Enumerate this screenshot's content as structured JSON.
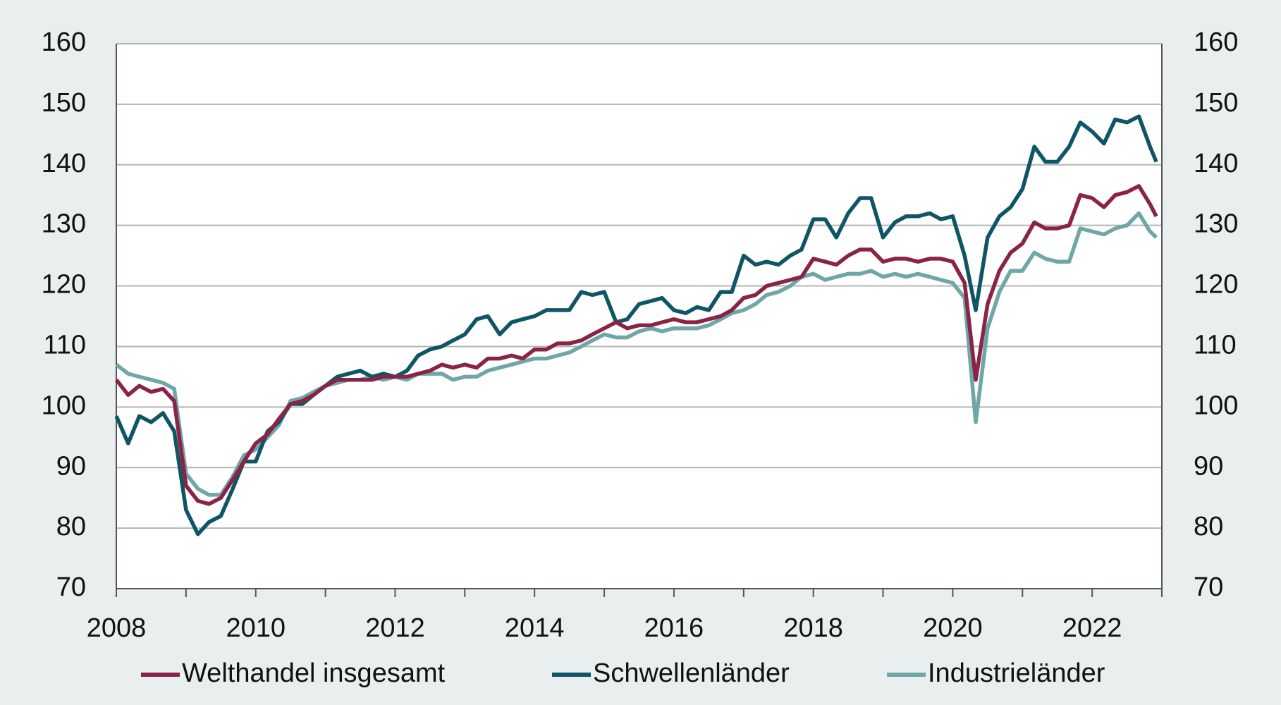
{
  "chart_data": {
    "type": "line",
    "x": [
      2008,
      2008.17,
      2008.33,
      2008.5,
      2008.67,
      2008.83,
      2009,
      2009.17,
      2009.33,
      2009.5,
      2009.67,
      2009.83,
      2010,
      2010.17,
      2010.33,
      2010.5,
      2010.67,
      2010.83,
      2011,
      2011.17,
      2011.33,
      2011.5,
      2011.67,
      2011.83,
      2012,
      2012.17,
      2012.33,
      2012.5,
      2012.67,
      2012.83,
      2013,
      2013.17,
      2013.33,
      2013.5,
      2013.67,
      2013.83,
      2014,
      2014.17,
      2014.33,
      2014.5,
      2014.67,
      2014.83,
      2015,
      2015.17,
      2015.33,
      2015.5,
      2015.67,
      2015.83,
      2016,
      2016.17,
      2016.33,
      2016.5,
      2016.67,
      2016.83,
      2017,
      2017.17,
      2017.33,
      2017.5,
      2017.67,
      2017.83,
      2018,
      2018.17,
      2018.33,
      2018.5,
      2018.67,
      2018.83,
      2019,
      2019.17,
      2019.33,
      2019.5,
      2019.67,
      2019.83,
      2020,
      2020.17,
      2020.33,
      2020.5,
      2020.67,
      2020.83,
      2021,
      2021.17,
      2021.33,
      2021.5,
      2021.67,
      2021.83,
      2022,
      2022.17,
      2022.33,
      2022.5,
      2022.67,
      2022.83,
      2022.92
    ],
    "series": [
      {
        "name": "Welthandel insgesamt",
        "color": "#8b2346",
        "values": [
          104.5,
          102,
          103.5,
          102.5,
          103,
          101,
          87,
          84.5,
          84,
          85,
          88,
          91,
          94,
          95.5,
          98,
          100.5,
          101,
          102,
          103.5,
          104.5,
          104.5,
          104.5,
          104.5,
          105,
          105,
          105,
          105.5,
          106,
          107,
          106.5,
          107,
          106.5,
          108,
          108,
          108.5,
          108,
          109.5,
          109.5,
          110.5,
          110.5,
          111,
          112,
          113,
          114,
          113,
          113.5,
          113.5,
          114,
          114.5,
          114,
          114,
          114.5,
          115,
          116,
          118,
          118.5,
          120,
          120.5,
          121,
          121.5,
          124.5,
          124,
          123.5,
          125,
          126,
          126,
          124,
          124.5,
          124.5,
          124,
          124.5,
          124.5,
          124,
          120.5,
          104.5,
          117,
          122.5,
          125.5,
          127,
          130.5,
          129.5,
          129.5,
          130,
          135,
          134.5,
          133,
          135,
          135.5,
          136.5,
          133.5,
          131.5
        ]
      },
      {
        "name": "Schwellenländer",
        "color": "#0e5566",
        "values": [
          98.5,
          94,
          98.5,
          97.5,
          99,
          96,
          83,
          79,
          81,
          82,
          86.5,
          91,
          91,
          96,
          97.5,
          100.5,
          100.5,
          102,
          103.5,
          105,
          105.5,
          106,
          105,
          105.5,
          105,
          106,
          108.5,
          109.5,
          110,
          111,
          112,
          114.5,
          115,
          112,
          114,
          114.5,
          115,
          116,
          116,
          116,
          119,
          118.5,
          119,
          114,
          114.5,
          117,
          117.5,
          118,
          116,
          115.5,
          116.5,
          116,
          119,
          119,
          125,
          123.5,
          124,
          123.5,
          125,
          126,
          131,
          131,
          128,
          132,
          134.5,
          134.5,
          128,
          130.5,
          131.5,
          131.5,
          132,
          131,
          131.5,
          125,
          116,
          128,
          131.5,
          133,
          136,
          143,
          140.5,
          140.5,
          143,
          147,
          145.5,
          143.5,
          147.5,
          147,
          148,
          143,
          140.5
        ]
      },
      {
        "name": "Industrieländer",
        "color": "#6fa6a8",
        "values": [
          107,
          105.5,
          105,
          104.5,
          104,
          103,
          89,
          86.5,
          85.5,
          85.5,
          88.5,
          92,
          93,
          95,
          97,
          101,
          101.5,
          102.5,
          103.5,
          104,
          104.5,
          104.5,
          105,
          104.5,
          105,
          104.5,
          105.5,
          105.5,
          105.5,
          104.5,
          105,
          105,
          106,
          106.5,
          107,
          107.5,
          108,
          108,
          108.5,
          109,
          110,
          111,
          112,
          111.5,
          111.5,
          112.5,
          113,
          112.5,
          113,
          113,
          113,
          113.5,
          114.5,
          115.5,
          116,
          117,
          118.5,
          119,
          120,
          121.5,
          122,
          121,
          121.5,
          122,
          122,
          122.5,
          121.5,
          122,
          121.5,
          122,
          121.5,
          121,
          120.5,
          118,
          97.5,
          113,
          119,
          122.5,
          122.5,
          125.5,
          124.5,
          124,
          124,
          129.5,
          129,
          128.5,
          129.5,
          130,
          132,
          129,
          128
        ]
      }
    ],
    "xlim": [
      2008,
      2023
    ],
    "xticks": [
      2008,
      2010,
      2012,
      2014,
      2016,
      2018,
      2020,
      2022
    ],
    "x_minor_ticks": [
      2009,
      2011,
      2013,
      2015,
      2017,
      2019,
      2021,
      2023
    ],
    "ylim": [
      70,
      160
    ],
    "yticks": [
      70,
      80,
      90,
      100,
      110,
      120,
      130,
      140,
      150,
      160
    ],
    "y2lim": [
      70,
      160
    ],
    "y2ticks": [
      70,
      80,
      90,
      100,
      110,
      120,
      130,
      140,
      150,
      160
    ],
    "grid": true,
    "legend": "bottom"
  }
}
